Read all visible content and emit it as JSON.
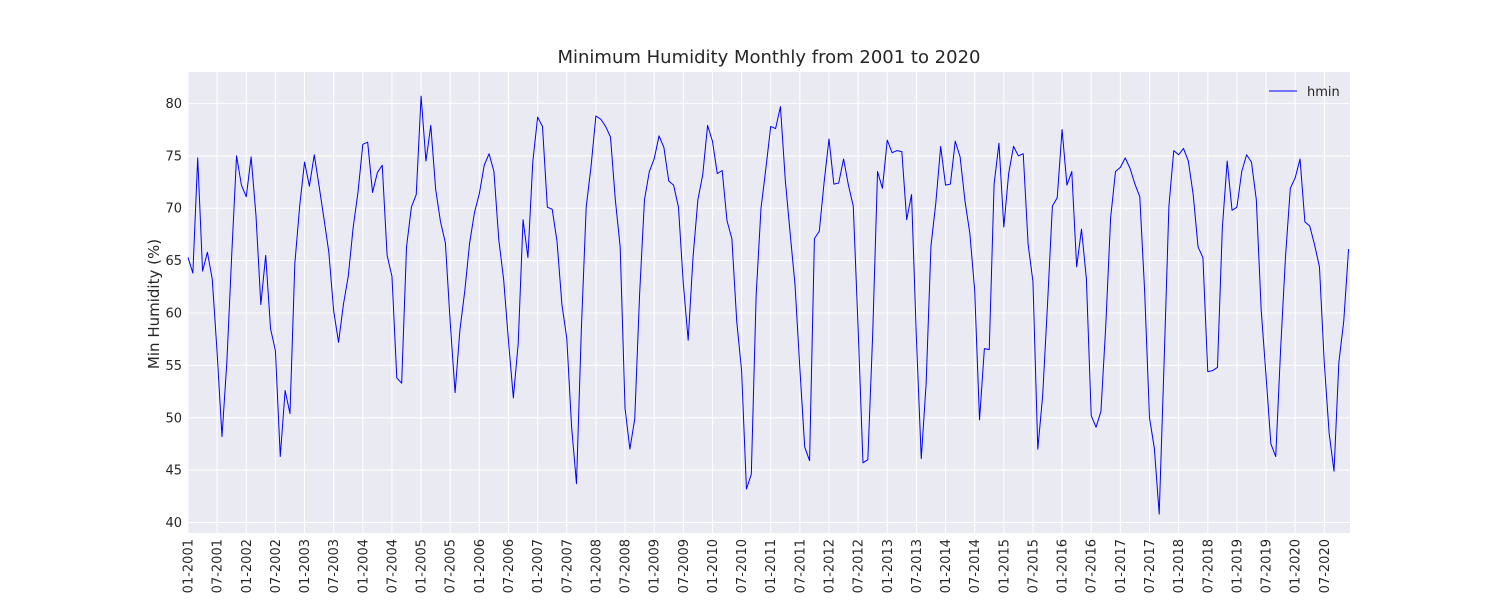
{
  "chart_data": {
    "type": "line",
    "title": "Minimum Humidity Monthly from 2001 to 2020",
    "xlabel": "",
    "ylabel": "Min Humidity (%)",
    "ylim": [
      39,
      83
    ],
    "yticks": [
      40,
      45,
      50,
      55,
      60,
      65,
      70,
      75,
      80
    ],
    "xticks": [
      "01-2001",
      "07-2001",
      "01-2002",
      "07-2002",
      "01-2003",
      "07-2003",
      "01-2004",
      "07-2004",
      "01-2005",
      "07-2005",
      "01-2006",
      "07-2006",
      "01-2007",
      "07-2007",
      "01-2008",
      "07-2008",
      "01-2009",
      "07-2009",
      "01-2010",
      "07-2010",
      "01-2011",
      "07-2011",
      "01-2012",
      "07-2012",
      "01-2013",
      "07-2013",
      "01-2014",
      "07-2014",
      "01-2015",
      "07-2015",
      "01-2016",
      "07-2016",
      "01-2017",
      "07-2017",
      "01-2018",
      "07-2018",
      "01-2019",
      "07-2019",
      "01-2020",
      "07-2020"
    ],
    "x_start": "01-2001",
    "grid": true,
    "background": "#eaeaf2",
    "legend_position": "top-right",
    "series": [
      {
        "name": "hmin",
        "color": "#0000ff",
        "values": [
          65.3,
          63.8,
          74.8,
          64.0,
          65.8,
          63.2,
          56.2,
          48.2,
          55.3,
          65.5,
          75.0,
          72.2,
          71.1,
          74.9,
          69.3,
          60.8,
          65.5,
          58.5,
          56.4,
          46.3,
          52.6,
          50.4,
          64.7,
          70.2,
          74.4,
          72.1,
          75.1,
          72.1,
          69.0,
          65.8,
          60.2,
          57.2,
          60.8,
          63.5,
          68.1,
          71.5,
          76.1,
          76.3,
          71.5,
          73.4,
          74.1,
          65.5,
          63.5,
          53.8,
          53.3,
          66.3,
          70.1,
          71.3,
          80.7,
          74.5,
          77.9,
          71.8,
          68.7,
          66.7,
          59.1,
          52.4,
          58.4,
          62.1,
          66.7,
          69.6,
          71.4,
          74.1,
          75.2,
          73.5,
          67.0,
          63.2,
          57.3,
          51.9,
          57.1,
          68.9,
          65.3,
          74.4,
          78.7,
          77.8,
          70.1,
          69.9,
          66.8,
          60.8,
          57.6,
          49.1,
          43.7,
          58.4,
          70.1,
          74.0,
          78.8,
          78.5,
          77.8,
          76.8,
          70.8,
          66.3,
          50.9,
          47.0,
          49.9,
          61.8,
          70.8,
          73.5,
          74.7,
          76.9,
          75.8,
          72.6,
          72.2,
          70.1,
          62.8,
          57.4,
          65.3,
          70.8,
          73.2,
          77.9,
          76.4,
          73.3,
          73.6,
          68.8,
          67.1,
          59.2,
          54.5,
          43.2,
          44.6,
          61.7,
          70.0,
          73.8,
          77.8,
          77.6,
          79.7,
          72.7,
          67.6,
          62.7,
          54.7,
          47.2,
          45.9,
          67.1,
          67.8,
          72.5,
          76.6,
          72.3,
          72.4,
          74.7,
          72.2,
          70.2,
          58.5,
          45.7,
          46.0,
          58.0,
          73.5,
          71.9,
          76.5,
          75.3,
          75.5,
          75.4,
          68.9,
          71.3,
          57.6,
          46.1,
          53.2,
          66.4,
          70.5,
          75.9,
          72.2,
          72.3,
          76.4,
          74.9,
          70.7,
          67.6,
          62.2,
          49.8,
          56.6,
          56.5,
          72.3,
          76.2,
          68.2,
          73.3,
          75.9,
          75.0,
          75.2,
          66.6,
          63.0,
          47.0,
          52.1,
          60.8,
          70.2,
          71.0,
          77.5,
          72.2,
          73.5,
          64.4,
          68.0,
          63.3,
          50.2,
          49.1,
          50.6,
          58.8,
          69.1,
          73.5,
          73.9,
          74.8,
          73.8,
          72.3,
          71.1,
          62.1,
          50.0,
          47.1,
          40.8,
          55.2,
          70.2,
          75.5,
          75.1,
          75.7,
          74.5,
          71.3,
          66.3,
          65.3,
          54.4,
          54.5,
          54.8,
          68.1,
          74.5,
          69.8,
          70.1,
          73.5,
          75.1,
          74.4,
          70.8,
          60.3,
          54.0,
          47.5,
          46.3,
          56.5,
          65.3,
          71.9,
          72.9,
          74.7,
          68.7,
          68.3,
          66.5,
          64.4,
          55.2,
          48.5,
          44.9,
          55.3,
          59.2,
          66.1
        ]
      }
    ]
  }
}
